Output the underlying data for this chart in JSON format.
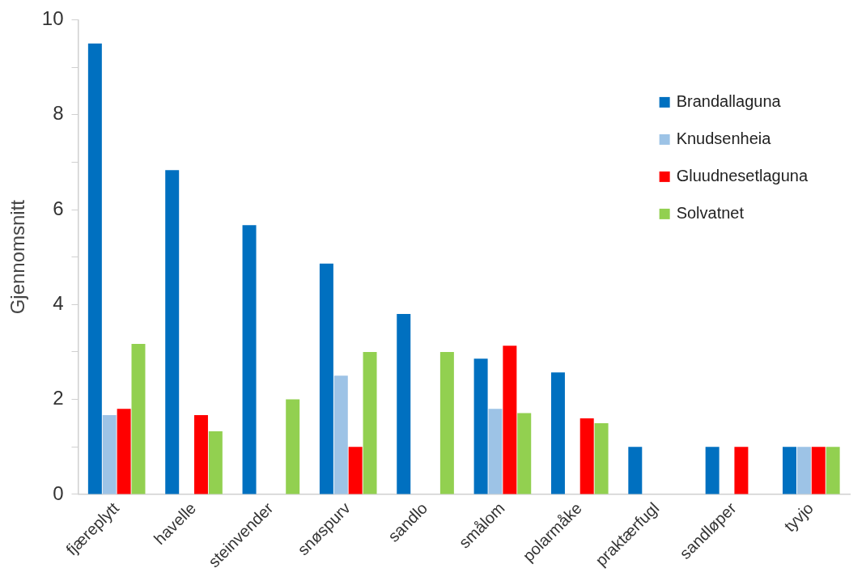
{
  "chart_data": {
    "type": "bar",
    "ylabel": "Gjennomsnitt",
    "categories": [
      "fjæreplytt",
      "havelle",
      "steinvender",
      "snøspurv",
      "sandlo",
      "smålom",
      "polarmåke",
      "praktærfugl",
      "sandløper",
      "tyvjo"
    ],
    "series": [
      {
        "name": "Brandallaguna",
        "color": "#0070c0",
        "values": [
          9.5,
          6.83,
          5.67,
          4.86,
          3.8,
          2.86,
          2.57,
          1,
          1,
          1
        ]
      },
      {
        "name": "Knudsenheia",
        "color": "#9dc3e6",
        "values": [
          1.67,
          null,
          null,
          2.5,
          null,
          1.8,
          null,
          null,
          null,
          1
        ]
      },
      {
        "name": "Gluudnesetlaguna",
        "color": "#ff0000",
        "values": [
          1.8,
          1.67,
          null,
          1,
          null,
          3.13,
          1.6,
          null,
          1,
          1
        ]
      },
      {
        "name": "Solvatnet",
        "color": "#92d050",
        "values": [
          3.17,
          1.33,
          2,
          3,
          3,
          1.71,
          1.5,
          null,
          null,
          1
        ]
      }
    ],
    "ylim": [
      0,
      10
    ],
    "yticks": [
      0,
      {
        "value": 1,
        "label": null
      },
      2,
      {
        "value": 3,
        "label": null
      },
      4,
      {
        "value": 5,
        "label": null
      },
      6,
      {
        "value": 7,
        "label": null
      },
      8,
      {
        "value": 9,
        "label": null
      },
      10
    ],
    "grid": false,
    "legend": "top right"
  }
}
